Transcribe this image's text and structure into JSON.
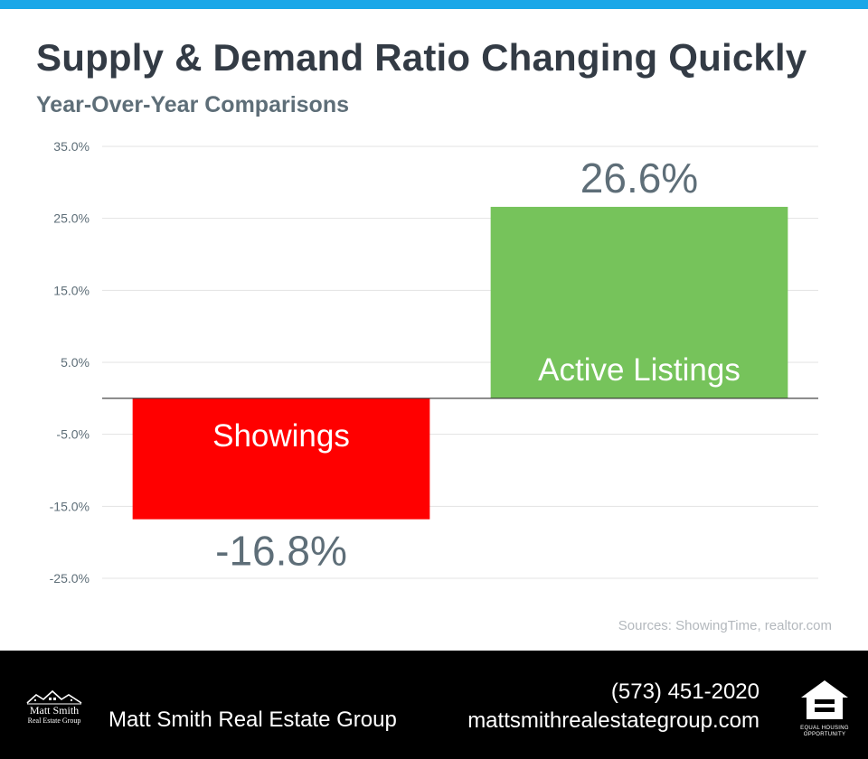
{
  "header": {
    "title": "Supply & Demand Ratio Changing Quickly",
    "subtitle": "Year-Over-Year Comparisons"
  },
  "chart_data": {
    "type": "bar",
    "title": "Supply & Demand Ratio Changing Quickly",
    "subtitle": "Year-Over-Year Comparisons",
    "categories": [
      "Showings",
      "Active Listings"
    ],
    "values": [
      -16.8,
      26.6
    ],
    "value_labels": [
      "-16.8%",
      "26.6%"
    ],
    "colors": [
      "#ff0000",
      "#76c35b"
    ],
    "ylim": [
      -25,
      35
    ],
    "yticks": [
      35,
      25,
      15,
      5,
      -5,
      -15,
      -25
    ],
    "ytick_labels": [
      "35.0%",
      "25.0%",
      "15.0%",
      "5.0%",
      "-5.0%",
      "-15.0%",
      "-25.0%"
    ],
    "grid": true,
    "legend": "none"
  },
  "sources": "Sources: ShowingTime,  realtor.com",
  "footer": {
    "logo_name": "Matt Smith",
    "logo_sub": "Real Estate Group",
    "company": "Matt Smith Real Estate Group",
    "phone": "(573) 451-2020",
    "website": "mattsmithrealestategroup.com",
    "eho_text_1": "EQUAL HOUSING",
    "eho_text_2": "OPPORTUNITY",
    "eho_icon": "equal-housing-icon",
    "logo_icon": "house-logo-icon"
  },
  "colors": {
    "accent_bar": "#1aa7e8",
    "title": "#333b45",
    "text_gray": "#5e6e78",
    "footer_bg": "#000000"
  }
}
